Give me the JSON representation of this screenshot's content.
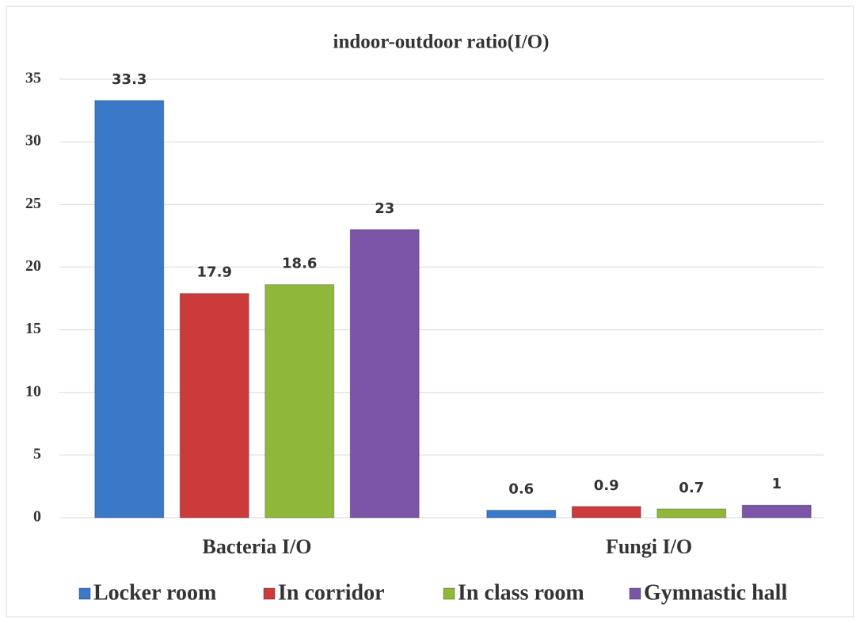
{
  "chart_data": {
    "type": "bar",
    "title": "indoor-outdoor ratio(I/O)",
    "categories": [
      "Bacteria I/O",
      "Fungi I/O"
    ],
    "series": [
      {
        "name": "Locker room",
        "color": "#3a78c8",
        "values": [
          33.3,
          0.6
        ]
      },
      {
        "name": "In corridor",
        "color": "#cc3b3b",
        "values": [
          17.9,
          0.9
        ]
      },
      {
        "name": "In class room",
        "color": "#8fb83a",
        "values": [
          18.6,
          0.7
        ]
      },
      {
        "name": "Gymnastic hall",
        "color": "#7b55a8",
        "values": [
          23,
          1
        ]
      }
    ],
    "ylim": [
      0,
      35
    ],
    "yticks": [
      0,
      5,
      10,
      15,
      20,
      25,
      30,
      35
    ],
    "grid": true,
    "legend": "bottom"
  }
}
